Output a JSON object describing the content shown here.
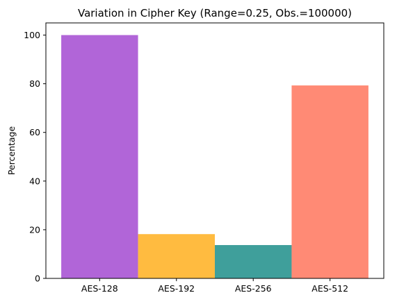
{
  "chart_data": {
    "type": "bar",
    "title": "Variation in Cipher Key (Range=0.25, Obs.=100000)",
    "xlabel": "",
    "ylabel": "Percentage",
    "categories": [
      "AES-128",
      "AES-192",
      "AES-256",
      "AES-512"
    ],
    "values": [
      100,
      18.2,
      13.7,
      79.3
    ],
    "colors": [
      "#b165d8",
      "#ffbb40",
      "#3f9f9b",
      "#ff8a75"
    ],
    "ylim": [
      0,
      105
    ],
    "yticks": [
      0,
      20,
      40,
      60,
      80,
      100
    ],
    "grid": false,
    "legend": "none"
  }
}
